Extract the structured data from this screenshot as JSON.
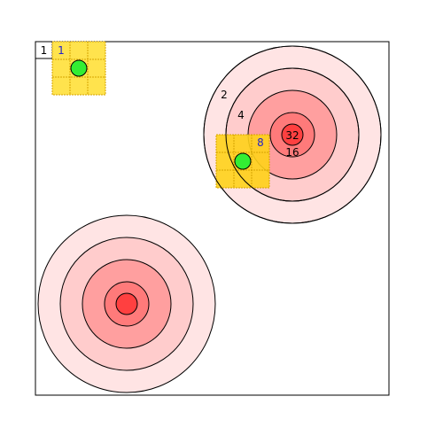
{
  "corner_label": "1",
  "colors": {
    "ring_outer": "#ffe4e4",
    "ring_2": "#ffcccc",
    "ring_3": "#ffb3b3",
    "ring_4": "#ff8f8f",
    "ring_center": "#ff4040",
    "grid_fill": "#ffe34d",
    "grid_fill_alt": "#ffd21a",
    "grid_stroke": "#d4a300",
    "agent": "#33ee33",
    "label_blue": "#2222cc",
    "label_black": "#000000"
  },
  "targets": [
    {
      "name": "top-right",
      "labels": [
        "2",
        "4",
        "8",
        "16",
        "32"
      ]
    },
    {
      "name": "bottom-left",
      "labels": []
    }
  ],
  "grids": [
    {
      "name": "top-left",
      "label": "1"
    },
    {
      "name": "middle-right",
      "label": ""
    }
  ],
  "agents": [
    {
      "name": "agent-top-left"
    },
    {
      "name": "agent-middle-right"
    }
  ]
}
